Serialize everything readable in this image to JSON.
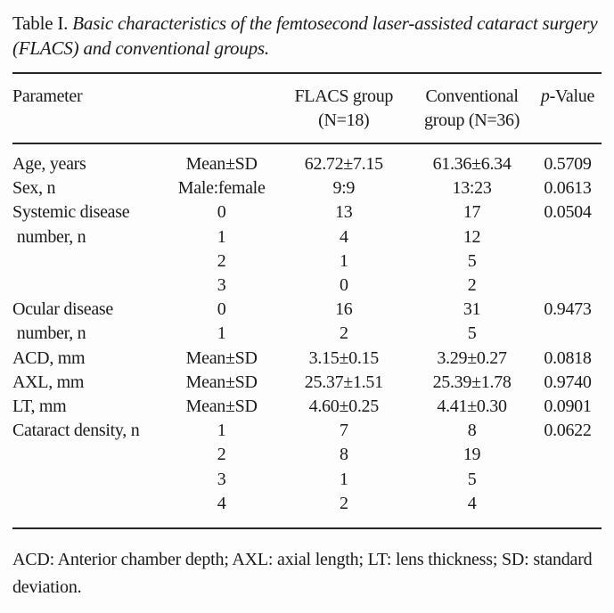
{
  "title": {
    "prefix": "Table I.",
    "italic": " Basic characteristics of the femtosecond laser-assisted cataract surgery (FLACS) and conventional groups."
  },
  "table": {
    "header": {
      "parameter": "Parameter",
      "subcategory": "",
      "flacs": "FLACS group (N=18)",
      "conventional": "Conventional group (N=36)",
      "pvalue_italic": "p",
      "pvalue_rest": "-Value"
    },
    "rows": [
      {
        "parameter": "Age, years",
        "sub": "Mean±SD",
        "flacs": "62.72±7.15",
        "conventional": "61.36±6.34",
        "p": "0.5709"
      },
      {
        "parameter": "Sex, n",
        "sub": "Male:female",
        "flacs": "9:9",
        "conventional": "13:23",
        "p": "0.0613"
      },
      {
        "parameter": "Systemic disease",
        "sub": "0",
        "flacs": "13",
        "conventional": "17",
        "p": "0.0504"
      },
      {
        "parameter": " number, n",
        "sub": "1",
        "flacs": "4",
        "conventional": "12",
        "p": ""
      },
      {
        "parameter": "",
        "sub": "2",
        "flacs": "1",
        "conventional": "5",
        "p": ""
      },
      {
        "parameter": "",
        "sub": "3",
        "flacs": "0",
        "conventional": "2",
        "p": ""
      },
      {
        "parameter": "Ocular disease",
        "sub": "0",
        "flacs": "16",
        "conventional": "31",
        "p": "0.9473"
      },
      {
        "parameter": " number, n",
        "sub": "1",
        "flacs": "2",
        "conventional": "5",
        "p": ""
      },
      {
        "parameter": "ACD, mm",
        "sub": "Mean±SD",
        "flacs": "3.15±0.15",
        "conventional": "3.29±0.27",
        "p": "0.0818"
      },
      {
        "parameter": "AXL, mm",
        "sub": "Mean±SD",
        "flacs": "25.37±1.51",
        "conventional": "25.39±1.78",
        "p": "0.9740"
      },
      {
        "parameter": "LT, mm",
        "sub": "Mean±SD",
        "flacs": "4.60±0.25",
        "conventional": "4.41±0.30",
        "p": "0.0901"
      },
      {
        "parameter": "Cataract density, n",
        "sub": "1",
        "flacs": "7",
        "conventional": "8",
        "p": "0.0622"
      },
      {
        "parameter": "",
        "sub": "2",
        "flacs": "8",
        "conventional": "19",
        "p": ""
      },
      {
        "parameter": "",
        "sub": "3",
        "flacs": "1",
        "conventional": "5",
        "p": ""
      },
      {
        "parameter": "",
        "sub": "4",
        "flacs": "2",
        "conventional": "4",
        "p": ""
      }
    ]
  },
  "footnote": "ACD: Anterior chamber depth; AXL: axial length; LT: lens thickness; SD: standard deviation."
}
